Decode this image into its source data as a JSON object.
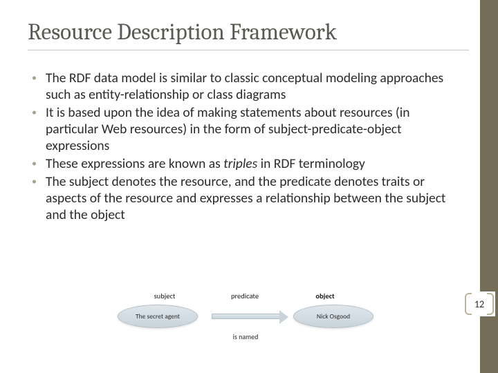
{
  "title": "Resource Description Framework",
  "bullets": [
    {
      "html": "The RDF data model is similar to classic conceptual modeling approaches such as entity-relationship or class diagrams"
    },
    {
      "html": "It is based upon the idea of making statements about resources (in particular Web resources) in the form of subject-predicate-object expressions"
    },
    {
      "html": "These expressions are known as <span class=\"italic\">triples</span> in RDF terminology"
    },
    {
      "html": "The subject denotes the resource, and the predicate denotes traits or aspects of the resource and expresses a relationship between the subject and the object"
    }
  ],
  "diagram": {
    "labels": {
      "l1": "subject",
      "l2": "predicate",
      "l3": "object"
    },
    "node_left": "The secret agent",
    "node_right": "Nick Osgood",
    "arrow_caption": "is named"
  },
  "page_number": "12",
  "colors": {
    "sidebar": "#746d57",
    "bracket": "#bab49a",
    "title": "#5a5a55",
    "bullet_dot": "#a7a08a",
    "ellipse_fill_top": "#dfe7ec",
    "ellipse_fill_bottom": "#c8d3da",
    "ellipse_border": "#b4c0c8"
  }
}
